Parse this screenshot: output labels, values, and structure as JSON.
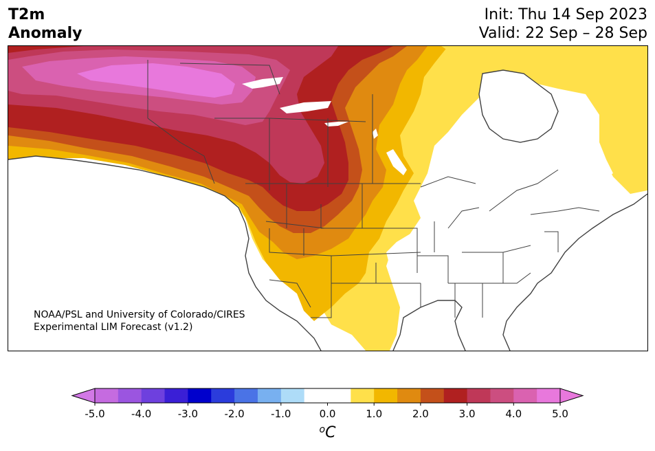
{
  "title": {
    "left_line1": "T2m",
    "left_line2": "Anomaly",
    "right_line1": "Init: Thu 14 Sep 2023",
    "right_line2": "Valid: 22 Sep – 28 Sep"
  },
  "credit": {
    "line1": "NOAA/PSL and University of Colorado/CIRES",
    "line2": "Experimental LIM Forecast (v1.2)"
  },
  "colorbar": {
    "unit": "°C",
    "unit_base": "C",
    "unit_super": "o",
    "ticks": [
      "-5.0",
      "-4.0",
      "-3.0",
      "-2.0",
      "-1.0",
      "0.0",
      "1.0",
      "2.0",
      "3.0",
      "4.0",
      "5.0"
    ],
    "colors": [
      "#c56be0",
      "#9b55e0",
      "#6e40de",
      "#3a1fd6",
      "#0000cc",
      "#2b3cdc",
      "#4a73e6",
      "#78b0f0",
      "#aedcf8",
      "#ffffff",
      "#ffffff",
      "#ffe04a",
      "#f2b700",
      "#e08a10",
      "#c4501a",
      "#b02020",
      "#bf3858",
      "#cc4e80",
      "#da62b0",
      "#e878dc"
    ],
    "under_color": "#d278e6",
    "over_color": "#e878dc"
  },
  "map_colors": {
    "ocean": "#ffffff",
    "lvl05": "#ffe04a",
    "lvl10": "#f2b700",
    "lvl15": "#e08a10",
    "lvl20": "#c4501a",
    "lvl25": "#b02020",
    "lvl30": "#bf3858",
    "lvl35": "#cc4e80",
    "lvl40": "#da62b0",
    "lvl45": "#e878dc",
    "borders": "#404040"
  }
}
